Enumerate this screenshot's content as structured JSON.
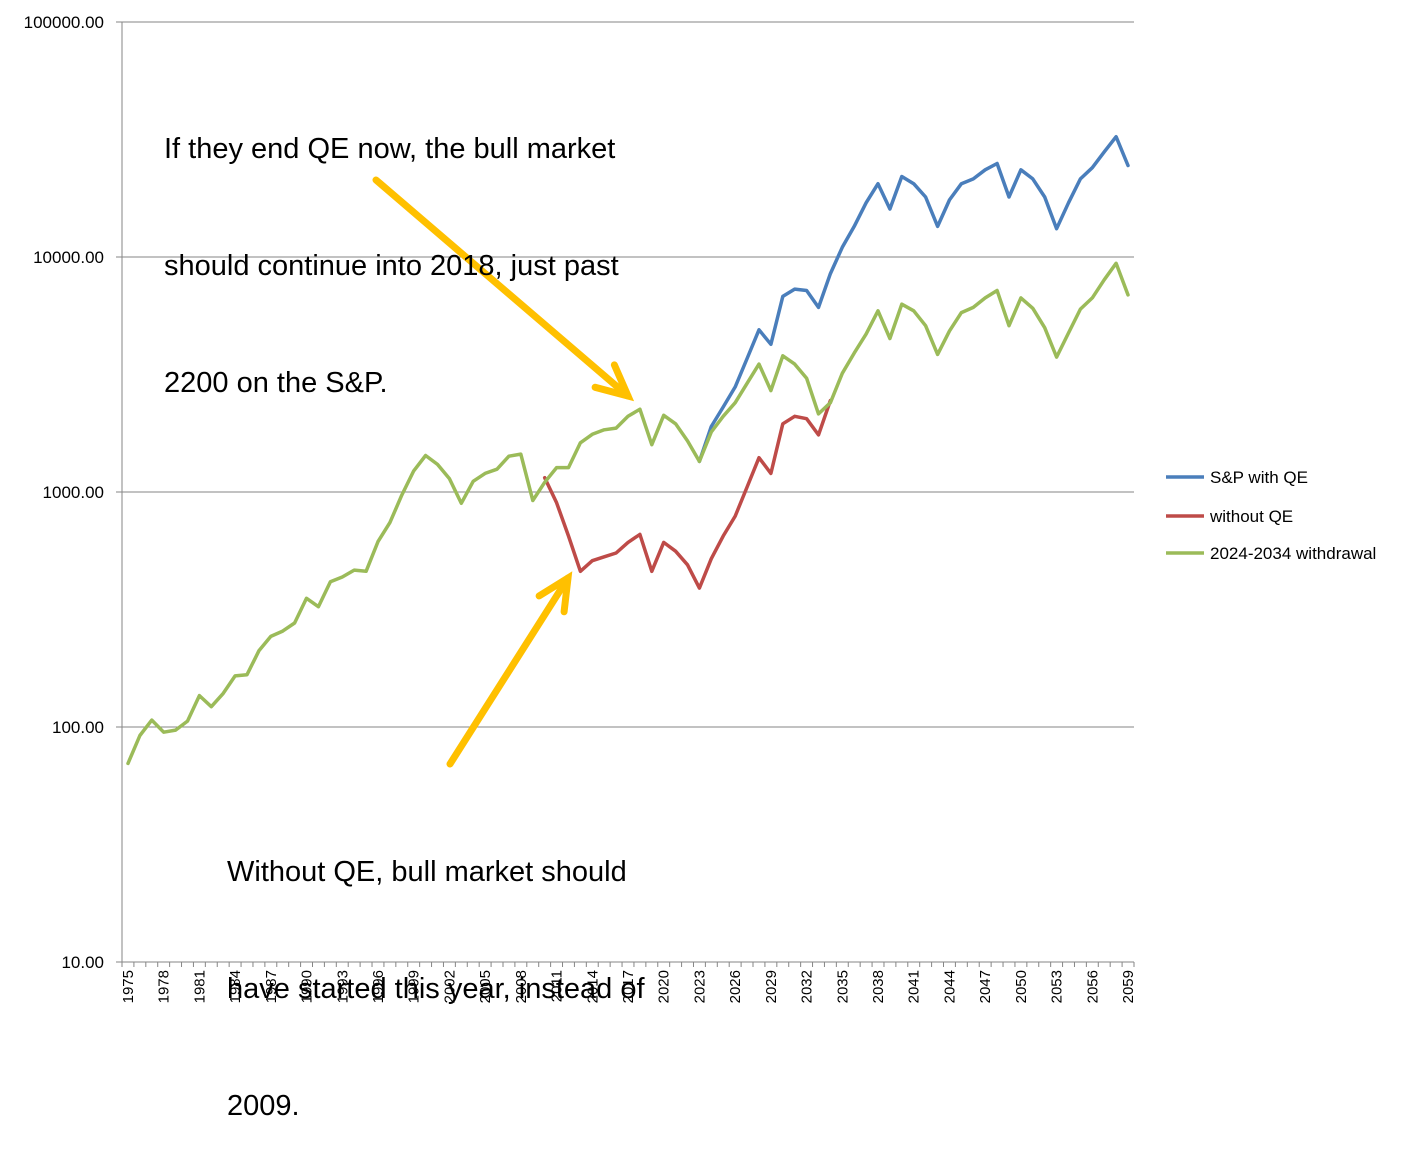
{
  "chart_data": {
    "type": "line",
    "title": "",
    "xlabel": "",
    "ylabel": "",
    "yscale": "log",
    "ylim": [
      10,
      100000
    ],
    "yticks": [
      "10.00",
      "100.00",
      "1000.00",
      "10000.00",
      "100000.00"
    ],
    "xtick_labels": [
      "1975",
      "1978",
      "1981",
      "1984",
      "1987",
      "1990",
      "1993",
      "1996",
      "1999",
      "2002",
      "2005",
      "2008",
      "2011",
      "2014",
      "2017",
      "2020",
      "2023",
      "2026",
      "2029",
      "2032",
      "2035",
      "2038",
      "2041",
      "2044",
      "2047",
      "2050",
      "2053",
      "2056",
      "2059"
    ],
    "x_start": 1975,
    "x_end": 2059,
    "grid": "horizontal",
    "legend": "right",
    "series": [
      {
        "name": "S&P with QE",
        "color": "#4a7ebb",
        "x": [
          2023,
          2024,
          2025,
          2026,
          2027,
          2028,
          2029,
          2030,
          2031,
          2032,
          2033,
          2034,
          2035,
          2036,
          2037,
          2038,
          2039,
          2040,
          2041,
          2042,
          2043,
          2044,
          2045,
          2046,
          2047,
          2048,
          2049,
          2050,
          2051,
          2052,
          2053,
          2054,
          2055,
          2056,
          2057,
          2058,
          2059
        ],
        "values": [
          1350,
          1900,
          2300,
          2800,
          3700,
          4900,
          4250,
          6800,
          7300,
          7200,
          6100,
          8500,
          11000,
          13500,
          17000,
          20500,
          16000,
          22000,
          20500,
          18000,
          13500,
          17500,
          20500,
          21500,
          23500,
          25000,
          18000,
          23500,
          21500,
          18000,
          13200,
          17000,
          21500,
          24000,
          28000,
          32500,
          24500
        ]
      },
      {
        "name": "without QE",
        "color": "#be4b48",
        "x": [
          2010,
          2011,
          2012,
          2013,
          2014,
          2015,
          2016,
          2017,
          2018,
          2019,
          2020,
          2021,
          2022,
          2023,
          2024,
          2025,
          2026,
          2027,
          2028,
          2029,
          2030,
          2031,
          2032,
          2033,
          2034
        ],
        "values": [
          1150,
          900,
          650,
          460,
          510,
          530,
          550,
          610,
          660,
          460,
          610,
          560,
          490,
          390,
          520,
          650,
          790,
          1050,
          1400,
          1200,
          1950,
          2100,
          2050,
          1750,
          2450
        ]
      },
      {
        "name": "2024-2034 withdrawal",
        "color": "#9bbb59",
        "x": [
          1975,
          1976,
          1977,
          1978,
          1979,
          1980,
          1981,
          1982,
          1983,
          1984,
          1985,
          1986,
          1987,
          1988,
          1989,
          1990,
          1991,
          1992,
          1993,
          1994,
          1995,
          1996,
          1997,
          1998,
          1999,
          2000,
          2001,
          2002,
          2003,
          2004,
          2005,
          2006,
          2007,
          2008,
          2009,
          2010,
          2011,
          2012,
          2013,
          2014,
          2015,
          2016,
          2017,
          2018,
          2019,
          2020,
          2021,
          2022,
          2023,
          2024,
          2025,
          2026,
          2027,
          2028,
          2029,
          2030,
          2031,
          2032,
          2033,
          2034,
          2035,
          2036,
          2037,
          2038,
          2039,
          2040,
          2041,
          2042,
          2043,
          2044,
          2045,
          2046,
          2047,
          2048,
          2049,
          2050,
          2051,
          2052,
          2053,
          2054,
          2055,
          2056,
          2057,
          2058,
          2059
        ],
        "values": [
          70,
          92,
          107,
          95,
          97,
          106,
          136,
          122,
          139,
          165,
          167,
          211,
          243,
          256,
          277,
          353,
          325,
          415,
          435,
          465,
          460,
          615,
          741,
          970,
          1230,
          1430,
          1310,
          1140,
          895,
          1110,
          1200,
          1250,
          1420,
          1450,
          920,
          1100,
          1270,
          1270,
          1620,
          1760,
          1840,
          1870,
          2100,
          2250,
          1590,
          2120,
          1950,
          1650,
          1350,
          1800,
          2100,
          2400,
          2900,
          3500,
          2700,
          3800,
          3500,
          3050,
          2150,
          2400,
          3200,
          3900,
          4700,
          5900,
          4500,
          6300,
          5900,
          5100,
          3850,
          4850,
          5800,
          6100,
          6700,
          7200,
          5100,
          6700,
          6050,
          5000,
          3750,
          4750,
          6000,
          6700,
          8000,
          9400,
          6900
        ]
      }
    ],
    "annotations": [
      {
        "lines": [
          "If they end QE now, the bull market",
          "should continue into 2018, just past",
          "2200 on the S&P."
        ],
        "arrow_color": "#ffc000"
      },
      {
        "lines": [
          "Without QE, bull market should",
          "have started this year, instead of",
          "2009."
        ],
        "arrow_color": "#ffc000"
      }
    ],
    "gridline_color": "#868686"
  }
}
